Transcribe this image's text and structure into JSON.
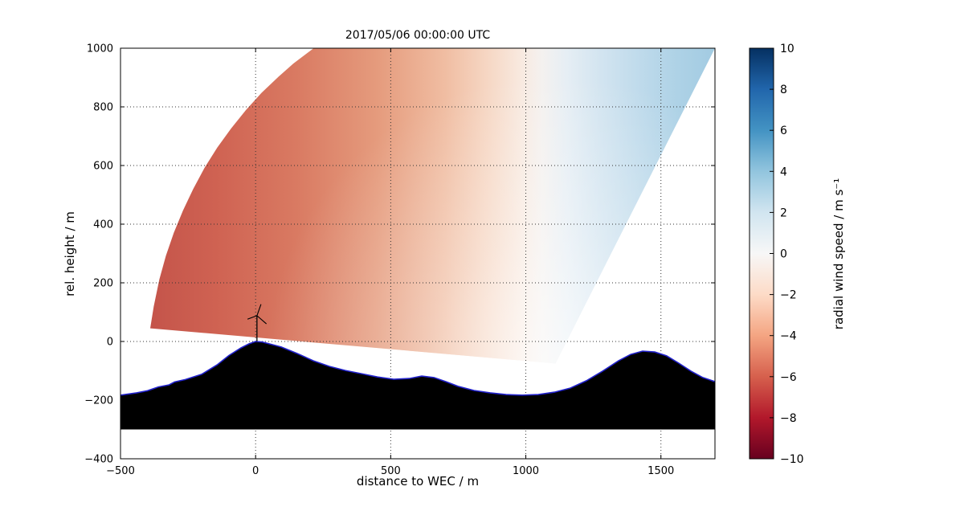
{
  "chart_data": {
    "type": "heatmap",
    "title": "2017/05/06 00:00:00 UTC",
    "xlabel": "distance to WEC / m",
    "ylabel": "rel. height / m",
    "xlim": [
      -500,
      1700
    ],
    "ylim": [
      -400,
      1000
    ],
    "grid": true,
    "xticks": [
      {
        "v": -500,
        "label": "−500"
      },
      {
        "v": 0,
        "label": "0"
      },
      {
        "v": 500,
        "label": "500"
      },
      {
        "v": 1000,
        "label": "1000"
      },
      {
        "v": 1500,
        "label": "1500"
      }
    ],
    "yticks": [
      {
        "v": -400,
        "label": "−400"
      },
      {
        "v": -200,
        "label": "−200"
      },
      {
        "v": 0,
        "label": "0"
      },
      {
        "v": 200,
        "label": "200"
      },
      {
        "v": 400,
        "label": "400"
      },
      {
        "v": 600,
        "label": "600"
      },
      {
        "v": 800,
        "label": "800"
      },
      {
        "v": 1000,
        "label": "1000"
      }
    ],
    "colorbar": {
      "label": "radial wind speed / m s⁻¹",
      "min": -10,
      "max": 10,
      "colormap": "RdBu",
      "ticks": [
        {
          "v": 10,
          "label": "10"
        },
        {
          "v": 8,
          "label": "8"
        },
        {
          "v": 6,
          "label": "6"
        },
        {
          "v": 4,
          "label": "4"
        },
        {
          "v": 2,
          "label": "2"
        },
        {
          "v": 0,
          "label": "0"
        },
        {
          "v": -2,
          "label": "−2"
        },
        {
          "v": -4,
          "label": "−4"
        },
        {
          "v": -6,
          "label": "−6"
        },
        {
          "v": -8,
          "label": "−8"
        },
        {
          "v": -10,
          "label": "−10"
        }
      ],
      "colors_top_to_bottom": [
        "#053061",
        "#2166ac",
        "#4393c3",
        "#92c5de",
        "#d1e5f0",
        "#f7f7f7",
        "#fddbc7",
        "#f4a582",
        "#d6604d",
        "#b2182b",
        "#67001f"
      ]
    },
    "scan": {
      "shape": "lidar RHI scan fan",
      "arc_points": [
        [
          -390,
          45
        ],
        [
          -377,
          120
        ],
        [
          -356,
          212
        ],
        [
          -332,
          292
        ],
        [
          -303,
          370
        ],
        [
          -269,
          446
        ],
        [
          -231,
          520
        ],
        [
          -189,
          592
        ],
        [
          -142,
          661
        ],
        [
          -91,
          726
        ],
        [
          -36,
          789
        ],
        [
          22,
          848
        ],
        [
          85,
          903
        ],
        [
          140,
          948
        ],
        [
          215,
          1000
        ]
      ],
      "top_right": [
        1700,
        1000
      ],
      "origin": [
        1110,
        -75
      ],
      "gradient_stops": [
        {
          "x": -390,
          "value": -5.5,
          "color": "#c4544a"
        },
        {
          "x": -150,
          "value": -4.8,
          "color": "#cf6252"
        },
        {
          "x": 150,
          "value": -4.0,
          "color": "#d97a62"
        },
        {
          "x": 450,
          "value": -3.0,
          "color": "#e59b7d"
        },
        {
          "x": 700,
          "value": -2.0,
          "color": "#f0bda2"
        },
        {
          "x": 860,
          "value": -1.2,
          "color": "#f6d7c4"
        },
        {
          "x": 980,
          "value": -0.4,
          "color": "#f8e9df"
        },
        {
          "x": 1060,
          "value": 0.0,
          "color": "#f4f1ef"
        },
        {
          "x": 1150,
          "value": 0.6,
          "color": "#e6eef4"
        },
        {
          "x": 1280,
          "value": 1.5,
          "color": "#d2e4f0"
        },
        {
          "x": 1430,
          "value": 2.3,
          "color": "#bedaeb"
        },
        {
          "x": 1560,
          "value": 3.0,
          "color": "#aed2e6"
        },
        {
          "x": 1700,
          "value": 3.6,
          "color": "#a2cbe2"
        }
      ]
    },
    "radial_speed_profile": [
      [
        -390,
        -5.5
      ],
      [
        0,
        -4.0
      ],
      [
        500,
        -2.8
      ],
      [
        800,
        -1.5
      ],
      [
        1000,
        -0.3
      ],
      [
        1150,
        0.8
      ],
      [
        1350,
        2.0
      ],
      [
        1550,
        3.0
      ],
      [
        1700,
        3.6
      ]
    ],
    "terrain": {
      "base": -300,
      "fill": "#000000",
      "outline": "#2222cc",
      "points": [
        [
          -500,
          -183
        ],
        [
          -440,
          -175
        ],
        [
          -400,
          -168
        ],
        [
          -360,
          -155
        ],
        [
          -320,
          -148
        ],
        [
          -300,
          -138
        ],
        [
          -260,
          -130
        ],
        [
          -200,
          -112
        ],
        [
          -143,
          -80
        ],
        [
          -99,
          -48
        ],
        [
          -54,
          -22
        ],
        [
          -24,
          -8
        ],
        [
          0,
          0
        ],
        [
          25,
          -2
        ],
        [
          50,
          -8
        ],
        [
          95,
          -19
        ],
        [
          154,
          -41
        ],
        [
          214,
          -66
        ],
        [
          273,
          -85
        ],
        [
          332,
          -99
        ],
        [
          392,
          -110
        ],
        [
          451,
          -121
        ],
        [
          511,
          -129
        ],
        [
          570,
          -126
        ],
        [
          615,
          -118
        ],
        [
          660,
          -123
        ],
        [
          704,
          -137
        ],
        [
          749,
          -153
        ],
        [
          808,
          -167
        ],
        [
          868,
          -175
        ],
        [
          927,
          -181
        ],
        [
          987,
          -183
        ],
        [
          1046,
          -181
        ],
        [
          1106,
          -173
        ],
        [
          1165,
          -159
        ],
        [
          1224,
          -134
        ],
        [
          1284,
          -101
        ],
        [
          1343,
          -66
        ],
        [
          1388,
          -44
        ],
        [
          1432,
          -33
        ],
        [
          1477,
          -36
        ],
        [
          1521,
          -49
        ],
        [
          1566,
          -74
        ],
        [
          1611,
          -101
        ],
        [
          1655,
          -123
        ],
        [
          1700,
          -137
        ]
      ]
    },
    "turbine": {
      "x": 5,
      "hub_height": 88,
      "blade_tips": [
        [
          15,
          127
        ],
        [
          35,
          60
        ],
        [
          -35,
          76
        ]
      ]
    }
  }
}
